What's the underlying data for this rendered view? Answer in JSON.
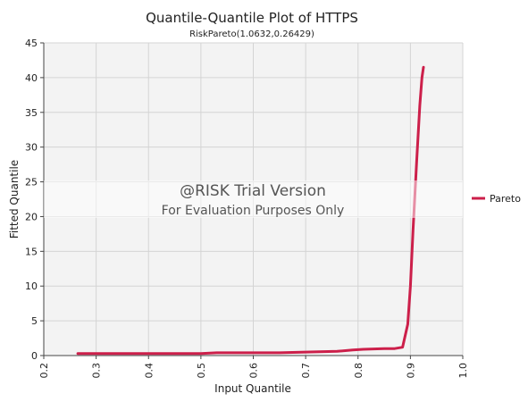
{
  "chart_data": {
    "type": "line",
    "title": "Quantile-Quantile Plot of HTTPS",
    "subtitle": "RiskPareto(1.0632,0.26429)",
    "xlabel": "Input Quantile",
    "ylabel": "Fitted Quantile",
    "xlim": [
      0.2,
      1.0
    ],
    "ylim": [
      0,
      45
    ],
    "xticks": [
      "0.2",
      "0.3",
      "0.4",
      "0.5",
      "0.6",
      "0.7",
      "0.8",
      "0.9",
      "1.0"
    ],
    "yticks": [
      "0",
      "5",
      "10",
      "15",
      "20",
      "25",
      "30",
      "35",
      "40",
      "45"
    ],
    "grid": true,
    "legend": {
      "position": "right",
      "entries": [
        "Pareto"
      ]
    },
    "series": [
      {
        "name": "Pareto",
        "color": "#cc1f4a",
        "x": [
          0.265,
          0.3,
          0.4,
          0.5,
          0.53,
          0.6,
          0.65,
          0.7,
          0.76,
          0.79,
          0.81,
          0.83,
          0.85,
          0.87,
          0.885,
          0.895,
          0.9,
          0.905,
          0.912,
          0.918,
          0.922,
          0.925
        ],
        "y": [
          0.3,
          0.3,
          0.3,
          0.3,
          0.4,
          0.4,
          0.4,
          0.5,
          0.6,
          0.8,
          0.9,
          0.95,
          1.0,
          1.0,
          1.2,
          4.5,
          10,
          18,
          28,
          36,
          40,
          41.5
        ]
      }
    ]
  },
  "watermark": {
    "line1": "@RISK Trial Version",
    "line2": "For Evaluation Purposes Only"
  }
}
